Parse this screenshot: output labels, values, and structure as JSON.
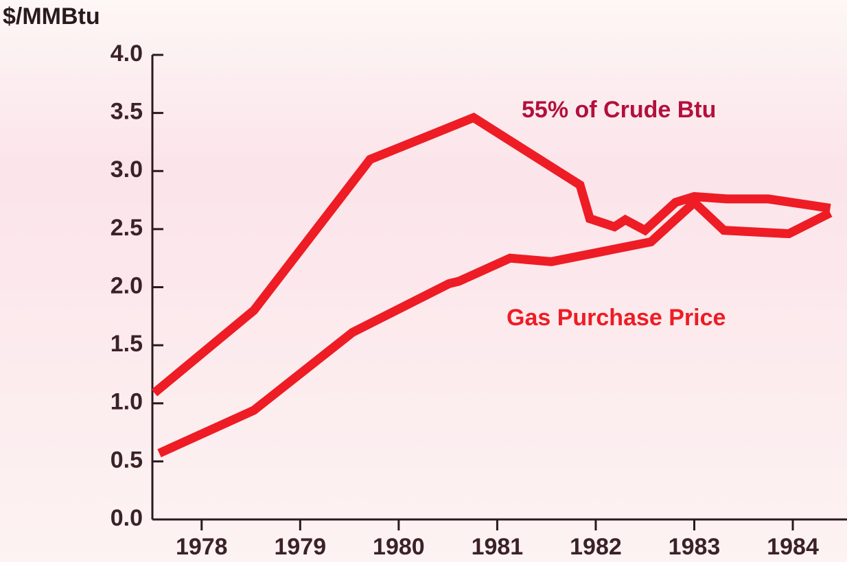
{
  "chart_data": {
    "type": "line",
    "y_label": "$/MMBtu",
    "annotations": [
      "55% of Crude Btu",
      "Gas Purchase Price"
    ],
    "xlim": [
      1977.5,
      1984.55
    ],
    "xticks": [
      1978,
      1979,
      1980,
      1981,
      1982,
      1983,
      1984
    ],
    "ylim": [
      0,
      4
    ],
    "yticks": [
      {
        "value": 0,
        "label": "0.0"
      },
      0.5,
      {
        "value": 1,
        "label": "1.0"
      },
      1.5,
      {
        "value": 2,
        "label": "2.0"
      },
      2.5,
      {
        "value": 3,
        "label": "3.0"
      },
      3.5,
      {
        "value": 4,
        "label": "4.0"
      }
    ],
    "series": [
      {
        "name": "55% of Crude Btu",
        "color": "#ee1c24",
        "x": [
          1977.52,
          1978.53,
          1979.71,
          1980.76,
          1981.84,
          1981.94,
          1982.19,
          1982.3,
          1982.5,
          1982.81,
          1983.0,
          1983.33,
          1983.75,
          1984.38
        ],
        "values": [
          1.09,
          1.8,
          3.1,
          3.46,
          2.88,
          2.59,
          2.52,
          2.58,
          2.49,
          2.73,
          2.78,
          2.76,
          2.76,
          2.68
        ]
      },
      {
        "name": "Gas Purchase Price",
        "color": "#ee1c24",
        "x": [
          1977.57,
          1978.53,
          1979.53,
          1980.51,
          1980.61,
          1981.13,
          1981.55,
          1982.56,
          1983.0,
          1983.3,
          1983.96,
          1984.38
        ],
        "values": [
          0.57,
          0.94,
          1.61,
          2.03,
          2.05,
          2.25,
          2.22,
          2.39,
          2.73,
          2.49,
          2.46,
          2.64
        ]
      }
    ]
  }
}
